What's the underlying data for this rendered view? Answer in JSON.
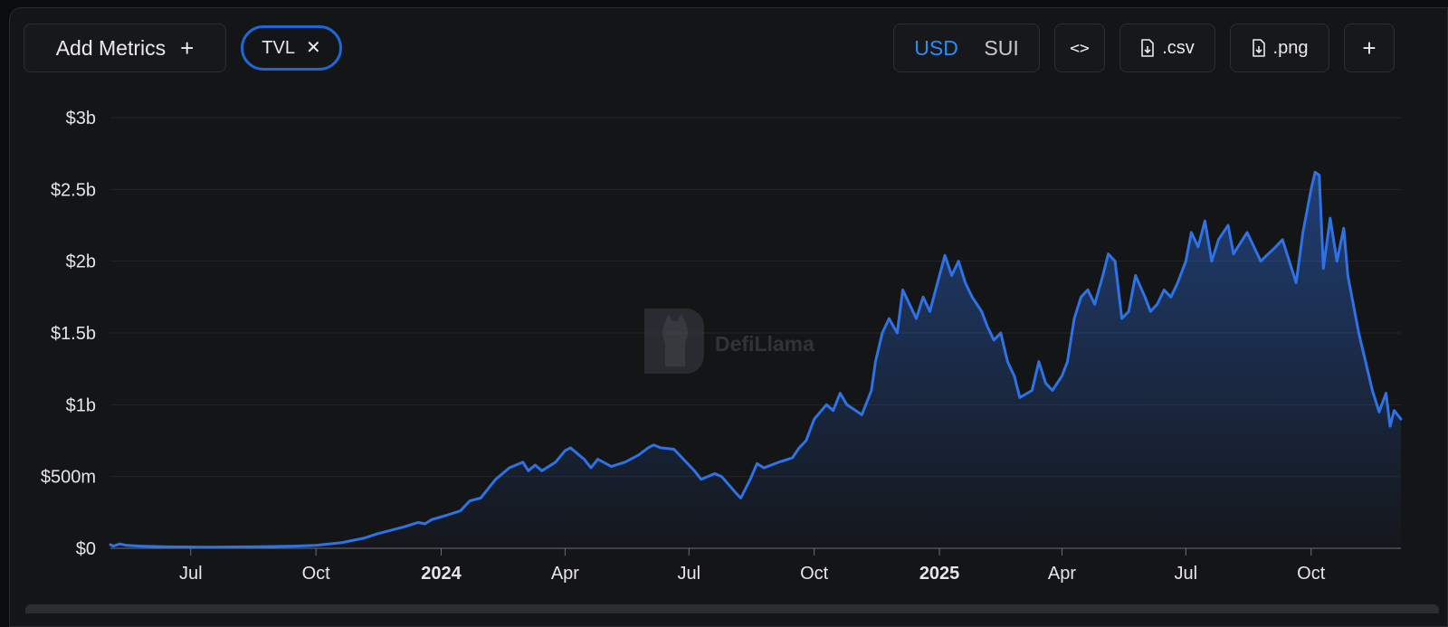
{
  "toolbar": {
    "add_metrics_label": "Add Metrics",
    "add_metrics_icon": "plus-icon",
    "metric_pill_label": "TVL",
    "metric_pill_icon": "close-icon",
    "currency_options": [
      "USD",
      "SUI"
    ],
    "currency_selected": "USD",
    "embed_label": "<>",
    "csv_label": ".csv",
    "png_label": ".png",
    "more_icon": "plus-icon"
  },
  "colors": {
    "line": "#2f72e6",
    "accent": "#2f8af5",
    "background": "#141517"
  },
  "watermark": {
    "text": "DefiLlama",
    "icon": "llama-logo-icon"
  },
  "chart_data": {
    "type": "area",
    "series": [
      {
        "name": "TVL",
        "unit": "USD"
      }
    ],
    "y_ticks": [
      "$0",
      "$500m",
      "$1b",
      "$1.5b",
      "$2b",
      "$2.5b",
      "$3b"
    ],
    "ylim": [
      0,
      3000000000
    ],
    "x_ticks": [
      {
        "label": "Jul",
        "date": "2023-07-01",
        "bold": false
      },
      {
        "label": "Oct",
        "date": "2023-10-01",
        "bold": false
      },
      {
        "label": "2024",
        "date": "2024-01-01",
        "bold": true
      },
      {
        "label": "Apr",
        "date": "2024-04-01",
        "bold": false
      },
      {
        "label": "Jul",
        "date": "2024-07-01",
        "bold": false
      },
      {
        "label": "Oct",
        "date": "2024-10-01",
        "bold": false
      },
      {
        "label": "2025",
        "date": "2025-01-01",
        "bold": true
      },
      {
        "label": "Apr",
        "date": "2025-04-01",
        "bold": false
      },
      {
        "label": "Jul",
        "date": "2025-07-01",
        "bold": false
      },
      {
        "label": "Oct",
        "date": "2025-10-01",
        "bold": false
      }
    ],
    "xlim": [
      "2023-05-03",
      "2025-12-06"
    ],
    "grid": true,
    "points": [
      [
        "2023-05-03",
        25000000
      ],
      [
        "2023-05-05",
        15000000
      ],
      [
        "2023-05-10",
        30000000
      ],
      [
        "2023-05-15",
        20000000
      ],
      [
        "2023-05-25",
        15000000
      ],
      [
        "2023-06-15",
        10000000
      ],
      [
        "2023-07-15",
        8000000
      ],
      [
        "2023-08-15",
        10000000
      ],
      [
        "2023-09-15",
        15000000
      ],
      [
        "2023-10-01",
        20000000
      ],
      [
        "2023-10-20",
        40000000
      ],
      [
        "2023-11-05",
        70000000
      ],
      [
        "2023-11-15",
        100000000
      ],
      [
        "2023-12-05",
        150000000
      ],
      [
        "2023-12-15",
        180000000
      ],
      [
        "2023-12-20",
        170000000
      ],
      [
        "2023-12-25",
        200000000
      ],
      [
        "2024-01-05",
        230000000
      ],
      [
        "2024-01-15",
        260000000
      ],
      [
        "2024-01-22",
        330000000
      ],
      [
        "2024-01-30",
        350000000
      ],
      [
        "2024-02-10",
        480000000
      ],
      [
        "2024-02-20",
        560000000
      ],
      [
        "2024-03-01",
        600000000
      ],
      [
        "2024-03-05",
        540000000
      ],
      [
        "2024-03-10",
        580000000
      ],
      [
        "2024-03-15",
        540000000
      ],
      [
        "2024-03-25",
        600000000
      ],
      [
        "2024-04-01",
        680000000
      ],
      [
        "2024-04-05",
        700000000
      ],
      [
        "2024-04-10",
        660000000
      ],
      [
        "2024-04-15",
        620000000
      ],
      [
        "2024-04-20",
        560000000
      ],
      [
        "2024-04-25",
        620000000
      ],
      [
        "2024-05-05",
        570000000
      ],
      [
        "2024-05-15",
        600000000
      ],
      [
        "2024-05-25",
        650000000
      ],
      [
        "2024-06-01",
        700000000
      ],
      [
        "2024-06-05",
        720000000
      ],
      [
        "2024-06-10",
        700000000
      ],
      [
        "2024-06-20",
        690000000
      ],
      [
        "2024-06-25",
        640000000
      ],
      [
        "2024-07-01",
        580000000
      ],
      [
        "2024-07-05",
        540000000
      ],
      [
        "2024-07-10",
        480000000
      ],
      [
        "2024-07-20",
        520000000
      ],
      [
        "2024-07-25",
        500000000
      ],
      [
        "2024-08-05",
        380000000
      ],
      [
        "2024-08-08",
        350000000
      ],
      [
        "2024-08-15",
        480000000
      ],
      [
        "2024-08-20",
        590000000
      ],
      [
        "2024-08-25",
        560000000
      ],
      [
        "2024-09-05",
        600000000
      ],
      [
        "2024-09-15",
        630000000
      ],
      [
        "2024-09-20",
        700000000
      ],
      [
        "2024-09-25",
        750000000
      ],
      [
        "2024-10-01",
        900000000
      ],
      [
        "2024-10-10",
        1000000000
      ],
      [
        "2024-10-15",
        960000000
      ],
      [
        "2024-10-20",
        1080000000
      ],
      [
        "2024-10-25",
        1000000000
      ],
      [
        "2024-11-05",
        930000000
      ],
      [
        "2024-11-12",
        1100000000
      ],
      [
        "2024-11-15",
        1300000000
      ],
      [
        "2024-11-20",
        1500000000
      ],
      [
        "2024-11-25",
        1600000000
      ],
      [
        "2024-12-01",
        1500000000
      ],
      [
        "2024-12-05",
        1800000000
      ],
      [
        "2024-12-10",
        1700000000
      ],
      [
        "2024-12-15",
        1600000000
      ],
      [
        "2024-12-20",
        1750000000
      ],
      [
        "2024-12-25",
        1650000000
      ],
      [
        "2025-01-01",
        1900000000
      ],
      [
        "2025-01-05",
        2040000000
      ],
      [
        "2025-01-10",
        1900000000
      ],
      [
        "2025-01-15",
        2000000000
      ],
      [
        "2025-01-20",
        1850000000
      ],
      [
        "2025-01-25",
        1750000000
      ],
      [
        "2025-02-01",
        1650000000
      ],
      [
        "2025-02-05",
        1550000000
      ],
      [
        "2025-02-10",
        1450000000
      ],
      [
        "2025-02-15",
        1500000000
      ],
      [
        "2025-02-20",
        1300000000
      ],
      [
        "2025-02-25",
        1200000000
      ],
      [
        "2025-03-01",
        1050000000
      ],
      [
        "2025-03-10",
        1100000000
      ],
      [
        "2025-03-15",
        1300000000
      ],
      [
        "2025-03-20",
        1150000000
      ],
      [
        "2025-03-25",
        1100000000
      ],
      [
        "2025-04-01",
        1200000000
      ],
      [
        "2025-04-05",
        1300000000
      ],
      [
        "2025-04-10",
        1600000000
      ],
      [
        "2025-04-15",
        1750000000
      ],
      [
        "2025-04-20",
        1800000000
      ],
      [
        "2025-04-25",
        1700000000
      ],
      [
        "2025-05-01",
        1900000000
      ],
      [
        "2025-05-05",
        2050000000
      ],
      [
        "2025-05-10",
        2000000000
      ],
      [
        "2025-05-15",
        1600000000
      ],
      [
        "2025-05-20",
        1650000000
      ],
      [
        "2025-05-25",
        1900000000
      ],
      [
        "2025-06-01",
        1750000000
      ],
      [
        "2025-06-05",
        1650000000
      ],
      [
        "2025-06-10",
        1700000000
      ],
      [
        "2025-06-15",
        1800000000
      ],
      [
        "2025-06-20",
        1750000000
      ],
      [
        "2025-06-25",
        1850000000
      ],
      [
        "2025-07-01",
        2000000000
      ],
      [
        "2025-07-05",
        2200000000
      ],
      [
        "2025-07-10",
        2100000000
      ],
      [
        "2025-07-15",
        2280000000
      ],
      [
        "2025-07-20",
        2000000000
      ],
      [
        "2025-07-25",
        2150000000
      ],
      [
        "2025-08-01",
        2250000000
      ],
      [
        "2025-08-05",
        2050000000
      ],
      [
        "2025-08-15",
        2200000000
      ],
      [
        "2025-08-25",
        2000000000
      ],
      [
        "2025-09-05",
        2100000000
      ],
      [
        "2025-09-10",
        2150000000
      ],
      [
        "2025-09-20",
        1850000000
      ],
      [
        "2025-09-25",
        2200000000
      ],
      [
        "2025-10-01",
        2500000000
      ],
      [
        "2025-10-04",
        2620000000
      ],
      [
        "2025-10-07",
        2600000000
      ],
      [
        "2025-10-10",
        1950000000
      ],
      [
        "2025-10-15",
        2300000000
      ],
      [
        "2025-10-20",
        2000000000
      ],
      [
        "2025-10-25",
        2230000000
      ],
      [
        "2025-10-28",
        1900000000
      ],
      [
        "2025-11-05",
        1500000000
      ],
      [
        "2025-11-10",
        1300000000
      ],
      [
        "2025-11-15",
        1100000000
      ],
      [
        "2025-11-20",
        950000000
      ],
      [
        "2025-11-25",
        1080000000
      ],
      [
        "2025-11-28",
        850000000
      ],
      [
        "2025-12-01",
        960000000
      ],
      [
        "2025-12-06",
        900000000
      ]
    ]
  }
}
